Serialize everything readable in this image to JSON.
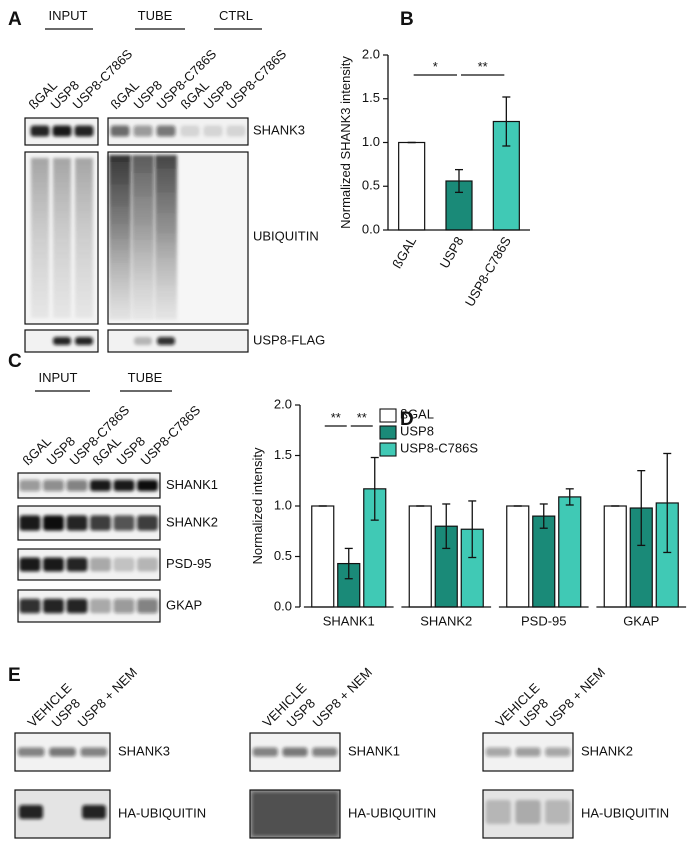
{
  "panel_labels": [
    "A",
    "B",
    "C",
    "D",
    "E"
  ],
  "blot_a": {
    "groups": [
      "INPUT",
      "TUBE",
      "CTRL"
    ],
    "lanes": [
      "ßGAL",
      "USP8",
      "USP8-C786S",
      "ßGAL",
      "USP8",
      "USP8-C786S",
      "ßGAL",
      "USP8",
      "USP8-C786S"
    ],
    "rows": [
      "SHANK3",
      "UBIQUITIN",
      "USP8-FLAG"
    ]
  },
  "blot_c": {
    "groups": [
      "INPUT",
      "TUBE"
    ],
    "lanes": [
      "ßGAL",
      "USP8",
      "USP8-C786S",
      "ßGAL",
      "USP8",
      "USP8-C786S"
    ],
    "rows": [
      "SHANK1",
      "SHANK2",
      "PSD-95",
      "GKAP"
    ]
  },
  "blot_e": {
    "lanes": [
      "VEHICLE",
      "USP8",
      "USP8 + NEM"
    ],
    "panels": [
      {
        "rows": [
          "SHANK3",
          "HA-UBIQUITIN"
        ]
      },
      {
        "rows": [
          "SHANK1",
          "HA-UBIQUITIN"
        ]
      },
      {
        "rows": [
          "SHANK2",
          "HA-UBIQUITIN"
        ]
      }
    ]
  },
  "chart_data": [
    {
      "type": "bar",
      "ylabel": "Normalized SHANK3 intensity",
      "categories": [
        "ßGAL",
        "USP8",
        "USP8-C786S"
      ],
      "values": [
        1.0,
        0.56,
        1.24
      ],
      "errors": [
        0,
        0.13,
        0.28
      ],
      "colors": [
        "#ffffff",
        "#1a8a78",
        "#40c9b5"
      ],
      "ylim": [
        0,
        2.0
      ],
      "yticks": [
        {
          "value": 0,
          "label": "0.0"
        },
        0.5,
        {
          "value": 1,
          "label": "1.0"
        },
        1.5,
        {
          "value": 2,
          "label": "2.0"
        }
      ],
      "significance": [
        {
          "label": "*",
          "between": [
            "ßGAL",
            "USP8"
          ]
        },
        {
          "label": "**",
          "between": [
            "USP8",
            "USP8-C786S"
          ]
        }
      ]
    },
    {
      "type": "bar",
      "ylabel": "Normalized intensity",
      "categories": [
        "SHANK1",
        "SHANK2",
        "PSD-95",
        "GKAP"
      ],
      "series": [
        {
          "name": "ßGAL",
          "color": "#ffffff",
          "values": [
            1.0,
            1.0,
            1.0,
            1.0
          ],
          "errors": [
            0,
            0,
            0,
            0
          ]
        },
        {
          "name": "USP8",
          "color": "#1a8a78",
          "values": [
            0.43,
            0.8,
            0.9,
            0.98
          ],
          "errors": [
            0.15,
            0.22,
            0.12,
            0.37
          ]
        },
        {
          "name": "USP8-C786S",
          "color": "#40c9b5",
          "values": [
            1.17,
            0.77,
            1.09,
            1.03
          ],
          "errors": [
            0.31,
            0.28,
            0.08,
            0.49
          ]
        }
      ],
      "ylim": [
        0,
        2.0
      ],
      "yticks": [
        {
          "value": 0,
          "label": "0.0"
        },
        0.5,
        {
          "value": 1,
          "label": "1.0"
        },
        1.5,
        {
          "value": 2,
          "label": "2.0"
        }
      ],
      "significance": [
        {
          "label": "**",
          "group": "SHANK1",
          "between": [
            "ßGAL",
            "USP8"
          ]
        },
        {
          "label": "**",
          "group": "SHANK1",
          "between": [
            "USP8",
            "USP8-C786S"
          ]
        }
      ]
    }
  ]
}
